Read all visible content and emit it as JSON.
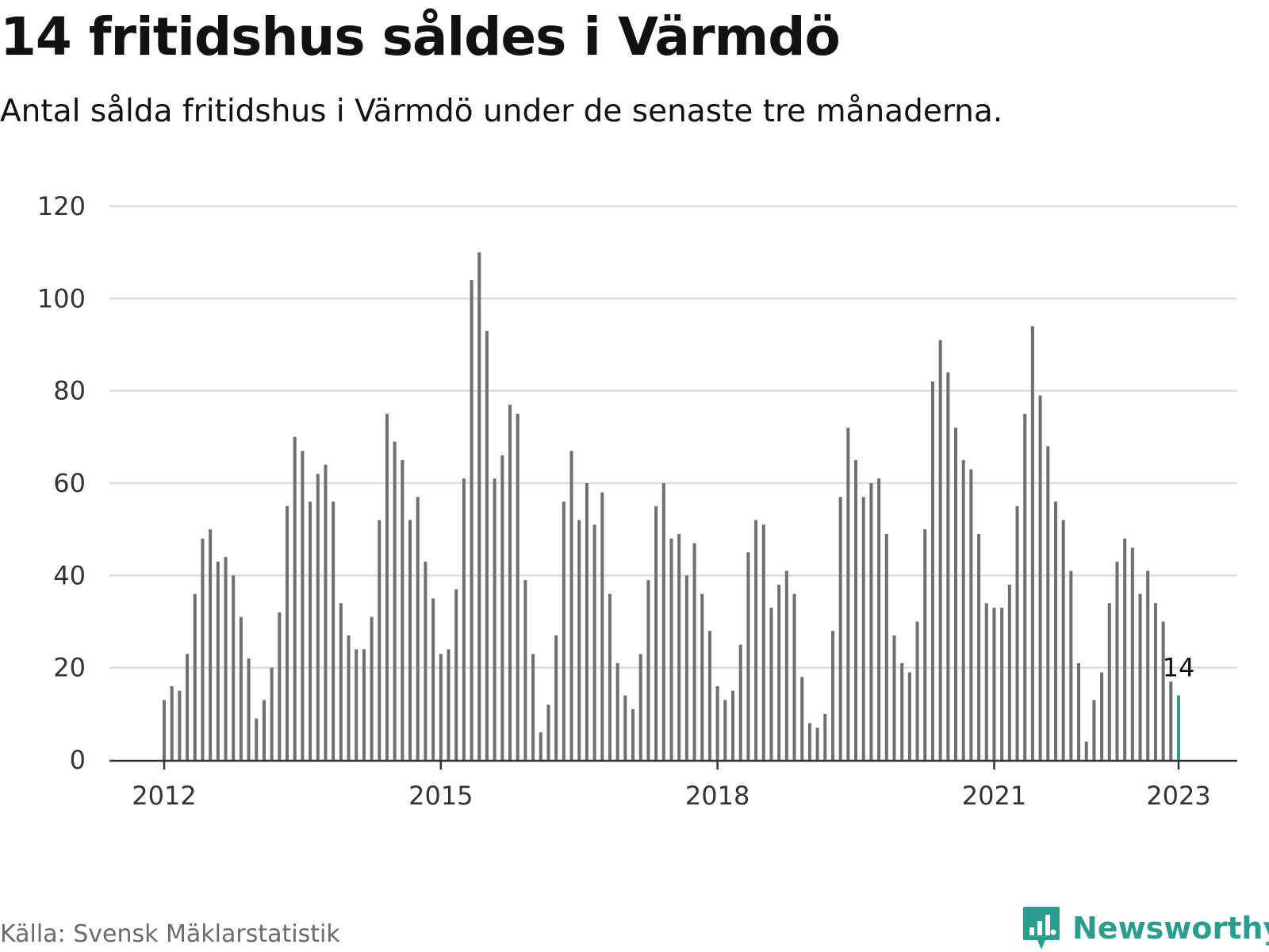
{
  "title": "14 fritidshus såldes i Värmdö",
  "subtitle": "Antal sålda fritidshus i Värmdö under de senaste tre månaderna.",
  "source": "Källa: Svensk Mäklarstatistik",
  "brand": {
    "name": "Newsworthy",
    "icon": "newsworthy-logo-icon",
    "color": "#2a9d8f"
  },
  "colors": {
    "bar": "#6f6f6f",
    "highlight": "#2a9d8f",
    "grid": "#dddddd",
    "axis": "#333333"
  },
  "chart_data": {
    "type": "bar",
    "start": "2012-01",
    "end": "2023-01",
    "x_ticks": [
      "2012",
      "2015",
      "2018",
      "2021",
      "2023"
    ],
    "ylim": [
      0,
      120
    ],
    "y_ticks": [
      "0",
      "20",
      "40",
      "60",
      "80",
      "100",
      "120"
    ],
    "grid": true,
    "values": [
      13,
      16,
      15,
      23,
      36,
      48,
      50,
      43,
      44,
      40,
      31,
      22,
      9,
      13,
      20,
      32,
      55,
      70,
      67,
      56,
      62,
      64,
      56,
      34,
      27,
      24,
      24,
      31,
      52,
      75,
      69,
      65,
      52,
      57,
      43,
      35,
      23,
      24,
      37,
      61,
      104,
      110,
      93,
      61,
      66,
      77,
      75,
      39,
      23,
      6,
      12,
      27,
      56,
      67,
      52,
      60,
      51,
      58,
      36,
      21,
      14,
      11,
      23,
      39,
      55,
      60,
      48,
      49,
      40,
      47,
      36,
      28,
      16,
      13,
      15,
      25,
      45,
      52,
      51,
      33,
      38,
      41,
      36,
      18,
      8,
      7,
      10,
      28,
      57,
      72,
      65,
      57,
      60,
      61,
      49,
      27,
      21,
      19,
      30,
      50,
      82,
      91,
      84,
      72,
      65,
      63,
      49,
      34,
      33,
      33,
      38,
      55,
      75,
      94,
      79,
      68,
      56,
      52,
      41,
      21,
      4,
      13,
      19,
      34,
      43,
      48,
      46,
      36,
      41,
      34,
      30,
      17,
      14
    ],
    "highlight": {
      "label": "14",
      "value": 14
    }
  }
}
